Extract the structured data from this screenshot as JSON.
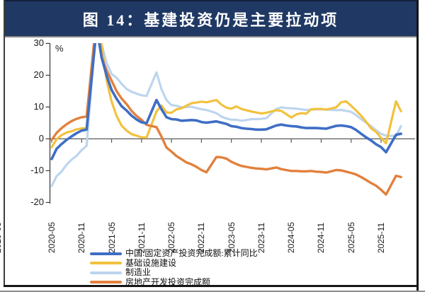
{
  "window": {
    "title_caption": "图 14：基建投资仍是主要拉动项"
  },
  "colors": {
    "title_bar_bg": "#1f3864",
    "title_text": "#ffffff",
    "axis": "#404040",
    "zero_line": "#595959",
    "series_blue": "#3e6ec5",
    "series_yellow": "#f2c13d",
    "series_lightblue": "#bdd5ee",
    "series_orange": "#e2803c"
  },
  "left_edge_fragment": "2020-05",
  "chart_data": {
    "type": "line",
    "title": "图 14：基建投资仍是主要拉动项",
    "ylabel": "%",
    "ylim": [
      -20,
      30
    ],
    "yticks": [
      30,
      20,
      10,
      0,
      -10,
      -20
    ],
    "grid": false,
    "legend_position": "bottom-left",
    "xticks": [
      "2020-05",
      "2020-11",
      "2021-05",
      "2021-11",
      "2022-05",
      "2022-11",
      "2023-05",
      "2023-11",
      "2024-05",
      "2024-11",
      "2025-05",
      "2025-11"
    ],
    "x_note": "monthly cumulative YoY (%), Jan omitted per China releases; x_months = month offset from 2020-05",
    "x_months": [
      0,
      1,
      2,
      3,
      4,
      5,
      6,
      7,
      9,
      10,
      11,
      12,
      13,
      14,
      15,
      16,
      17,
      18,
      19,
      21,
      22,
      23,
      24,
      25,
      26,
      27,
      28,
      29,
      30,
      31,
      33,
      34,
      35,
      36,
      37,
      38,
      39,
      40,
      41,
      42,
      43,
      45,
      46,
      47,
      48,
      49,
      50,
      51,
      52,
      53,
      54,
      55,
      57,
      58,
      59,
      60,
      61,
      62,
      63,
      64,
      65,
      66,
      67,
      69,
      70
    ],
    "series": [
      {
        "name": "中国:固定资产投资完成额:累计同比",
        "color": "#3e6ec5",
        "width": 3.6,
        "values": [
          -6.3,
          -3.1,
          -1.6,
          -0.3,
          0.8,
          1.8,
          2.6,
          2.9,
          35.0,
          25.6,
          19.9,
          15.4,
          12.6,
          10.3,
          8.9,
          7.3,
          6.1,
          5.2,
          4.9,
          12.2,
          9.3,
          6.8,
          6.2,
          6.1,
          5.7,
          5.8,
          5.9,
          5.8,
          5.3,
          5.1,
          5.5,
          5.1,
          4.7,
          4.0,
          3.8,
          3.4,
          3.2,
          3.1,
          2.9,
          2.9,
          3.0,
          4.2,
          4.5,
          4.2,
          4.0,
          3.9,
          3.6,
          3.4,
          3.4,
          3.4,
          3.3,
          3.2,
          4.1,
          4.2,
          4.0,
          3.7,
          2.8,
          1.6,
          0.5,
          -0.5,
          -1.7,
          -2.6,
          -4.2,
          1.3,
          1.6
        ]
      },
      {
        "name": "基础设施建设",
        "color": "#f2c13d",
        "width": 3.2,
        "values": [
          -2.6,
          -0.1,
          1.2,
          2.0,
          2.4,
          3.0,
          3.3,
          3.4,
          36.6,
          29.7,
          18.4,
          11.8,
          7.2,
          4.2,
          2.6,
          1.5,
          1.0,
          0.5,
          0.4,
          8.6,
          10.5,
          8.3,
          8.2,
          9.3,
          9.6,
          10.4,
          11.2,
          11.4,
          11.7,
          11.5,
          12.2,
          10.8,
          9.8,
          9.5,
          10.2,
          9.4,
          9.0,
          8.6,
          8.3,
          8.0,
          8.2,
          9.0,
          8.8,
          7.8,
          6.7,
          7.7,
          8.1,
          7.9,
          9.3,
          9.4,
          9.4,
          9.2,
          9.9,
          11.5,
          11.8,
          10.4,
          8.9,
          7.3,
          5.4,
          3.3,
          2.2,
          0.3,
          -1.4,
          11.8,
          8.7
        ]
      },
      {
        "name": "制造业",
        "color": "#bdd5ee",
        "width": 3.2,
        "values": [
          -14.8,
          -11.7,
          -10.2,
          -8.1,
          -6.5,
          -5.3,
          -3.5,
          -2.2,
          37.3,
          29.8,
          23.8,
          20.4,
          19.2,
          17.3,
          15.7,
          14.8,
          14.2,
          13.7,
          13.5,
          20.9,
          15.6,
          12.2,
          10.6,
          10.4,
          9.9,
          10.0,
          10.1,
          9.7,
          9.3,
          9.1,
          8.1,
          7.0,
          6.4,
          6.0,
          6.0,
          5.7,
          5.9,
          6.2,
          6.2,
          6.3,
          6.5,
          9.4,
          9.9,
          9.7,
          9.6,
          9.5,
          9.3,
          9.1,
          9.2,
          9.3,
          9.3,
          9.2,
          9.0,
          9.1,
          8.8,
          8.5,
          7.5,
          6.2,
          5.1,
          4.0,
          2.7,
          1.6,
          1.0,
          0.9,
          4.0
        ]
      },
      {
        "name": "房地产开发投资完成额",
        "color": "#e2803c",
        "width": 3.4,
        "values": [
          -0.3,
          1.9,
          3.4,
          4.6,
          5.6,
          6.3,
          6.8,
          7.0,
          38.3,
          25.6,
          21.6,
          18.3,
          15.0,
          12.7,
          10.9,
          8.8,
          7.2,
          6.0,
          4.4,
          3.7,
          0.7,
          -2.7,
          -4.0,
          -5.4,
          -6.4,
          -7.4,
          -8.0,
          -8.8,
          -9.8,
          -10.5,
          -5.7,
          -5.8,
          -6.2,
          -7.2,
          -7.9,
          -8.5,
          -8.8,
          -9.1,
          -9.3,
          -9.4,
          -9.6,
          -9.0,
          -9.5,
          -9.8,
          -10.1,
          -10.1,
          -10.2,
          -10.2,
          -10.1,
          -10.3,
          -10.4,
          -10.6,
          -9.8,
          -9.9,
          -10.3,
          -10.7,
          -11.2,
          -12.0,
          -12.9,
          -13.9,
          -14.7,
          -16.0,
          -17.5,
          -11.6,
          -12.0
        ]
      }
    ]
  }
}
